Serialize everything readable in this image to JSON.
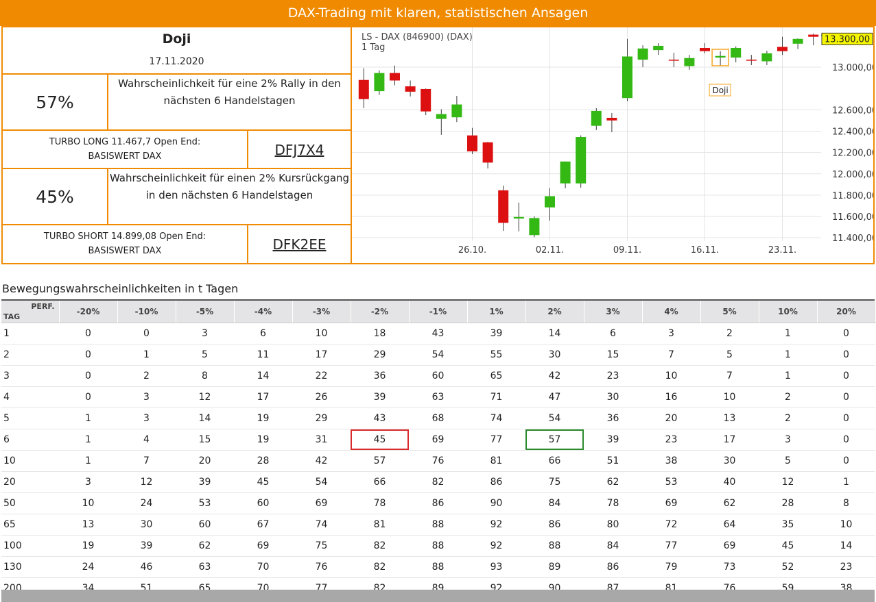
{
  "header": {
    "title": "DAX-Trading mit klaren, statistischen Ansagen"
  },
  "signal": {
    "pattern": "Doji",
    "date": "17.11.2020",
    "long": {
      "probability": "57%",
      "text": "Wahrscheinlichkeit für eine 2% Rally in den\nnächsten 6 Handelstagen",
      "product": "TURBO LONG 11.467,7 Open End:\nBASISWERT DAX",
      "code": "DFJ7X4"
    },
    "short": {
      "probability": "45%",
      "text": "Wahrscheinlichkeit für einen 2% Kursrückgang\nin den nächsten 6 Handelstagen",
      "product": "TURBO SHORT 14.899,08 Open End:\nBASISWERT DAX",
      "code": "DFK2EE"
    }
  },
  "chart_data": {
    "type": "candlestick",
    "title": "LS - DAX (846900) (DAX)",
    "subtitle": "1 Tag",
    "categories": [
      null,
      null,
      null,
      null,
      null,
      null,
      null,
      "26.10.",
      null,
      null,
      null,
      null,
      "02.11.",
      null,
      null,
      null,
      null,
      "09.11.",
      null,
      null,
      null,
      null,
      "16.11.",
      null,
      null,
      null,
      null,
      "23.11.",
      null,
      null
    ],
    "open": [
      12880,
      12775,
      12945,
      12820,
      12795,
      12515,
      12530,
      12360,
      12295,
      11845,
      11580,
      11425,
      11685,
      11910,
      11910,
      12450,
      12525,
      12710,
      13070,
      13160,
      13070,
      13010,
      13180,
      13090,
      13090,
      13070,
      13055,
      13190,
      13220,
      13305
    ],
    "high": [
      12990,
      12970,
      13015,
      12875,
      12800,
      12605,
      12730,
      12430,
      12300,
      11890,
      11730,
      11600,
      11865,
      12115,
      12360,
      12615,
      12570,
      13265,
      13205,
      13225,
      13135,
      13115,
      13225,
      13150,
      13195,
      13115,
      13155,
      13285,
      13270,
      13315
    ],
    "low": [
      12615,
      12740,
      12830,
      12725,
      12550,
      12365,
      12485,
      12185,
      12050,
      11465,
      11460,
      11405,
      11560,
      11865,
      11870,
      12410,
      12390,
      12680,
      13000,
      13115,
      13000,
      12975,
      13130,
      13015,
      13045,
      13020,
      13020,
      13115,
      13170,
      13205
    ],
    "close": [
      12700,
      12945,
      12875,
      12770,
      12585,
      12560,
      12650,
      12210,
      12105,
      11540,
      11595,
      11585,
      11790,
      12115,
      12345,
      12590,
      12500,
      13100,
      13175,
      13200,
      13065,
      13085,
      13150,
      13105,
      13180,
      13065,
      13130,
      13150,
      13265,
      13285
    ],
    "up_color": "#33b814",
    "down_color": "#dc1010",
    "ylim": [
      11170,
      13360
    ],
    "yticks": [
      {
        "value": 11400,
        "label": "11.400,00"
      },
      {
        "value": 11600,
        "label": "11.600,00"
      },
      {
        "value": 11800,
        "label": "11.800,00"
      },
      {
        "value": 12000,
        "label": "12.000,00"
      },
      {
        "value": 12200,
        "label": "12.200,00"
      },
      {
        "value": 12400,
        "label": "12.400,00"
      },
      {
        "value": 12600,
        "label": "12.600,00"
      },
      {
        "value": 13000,
        "label": "13.000,00"
      }
    ],
    "grid": true,
    "last_price": {
      "value": 13300,
      "label": "13.300,00"
    },
    "annotation": {
      "text": "Doji",
      "index": 23
    }
  },
  "table": {
    "title": "Bewegungswahrscheinlichkeiten in t Tagen",
    "corner_top": "PERF.",
    "corner_bottom": "TAG",
    "columns": [
      "-20%",
      "-10%",
      "-5%",
      "-4%",
      "-3%",
      "-2%",
      "-1%",
      "1%",
      "2%",
      "3%",
      "4%",
      "5%",
      "10%",
      "20%"
    ],
    "rows": [
      [
        1,
        0,
        0,
        3,
        6,
        10,
        18,
        43,
        39,
        14,
        6,
        3,
        2,
        1,
        0
      ],
      [
        2,
        0,
        1,
        5,
        11,
        17,
        29,
        54,
        55,
        30,
        15,
        7,
        5,
        1,
        0
      ],
      [
        3,
        0,
        2,
        8,
        14,
        22,
        36,
        60,
        65,
        42,
        23,
        10,
        7,
        1,
        0
      ],
      [
        4,
        0,
        3,
        12,
        17,
        26,
        39,
        63,
        71,
        47,
        30,
        16,
        10,
        2,
        0
      ],
      [
        5,
        1,
        3,
        14,
        19,
        29,
        43,
        68,
        74,
        54,
        36,
        20,
        13,
        2,
        0
      ],
      [
        6,
        1,
        4,
        15,
        19,
        31,
        45,
        69,
        77,
        57,
        39,
        23,
        17,
        3,
        0
      ],
      [
        10,
        1,
        7,
        20,
        28,
        42,
        57,
        76,
        81,
        66,
        51,
        38,
        30,
        5,
        0
      ],
      [
        20,
        3,
        12,
        39,
        45,
        54,
        66,
        82,
        86,
        75,
        62,
        53,
        40,
        12,
        1
      ],
      [
        50,
        10,
        24,
        53,
        60,
        69,
        78,
        86,
        90,
        84,
        78,
        69,
        62,
        28,
        8
      ],
      [
        65,
        13,
        30,
        60,
        67,
        74,
        81,
        88,
        92,
        86,
        80,
        72,
        64,
        35,
        10
      ],
      [
        100,
        19,
        39,
        62,
        69,
        75,
        82,
        88,
        92,
        88,
        84,
        77,
        69,
        45,
        14
      ],
      [
        130,
        24,
        46,
        63,
        70,
        76,
        82,
        88,
        93,
        89,
        86,
        79,
        73,
        52,
        23
      ],
      [
        200,
        34,
        51,
        65,
        70,
        77,
        82,
        89,
        92,
        90,
        87,
        81,
        76,
        59,
        38
      ]
    ],
    "highlights": [
      {
        "row": 5,
        "col": 6,
        "color": "#d92b2b"
      },
      {
        "row": 5,
        "col": 9,
        "color": "#2b8a2b"
      }
    ]
  }
}
